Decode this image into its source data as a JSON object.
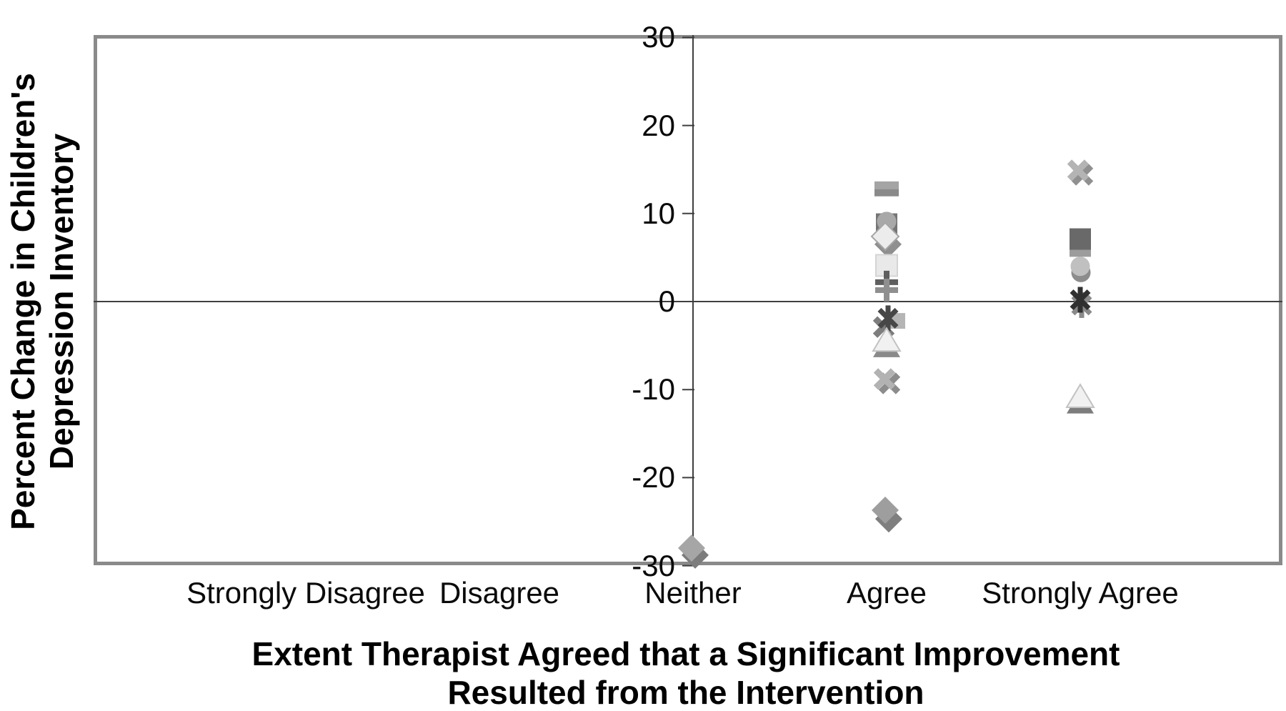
{
  "page": {
    "background": "#ffffff",
    "text_color": "#0a0a0a"
  },
  "chart_data": {
    "type": "scatter",
    "title": "",
    "xlabel": "Extent Therapist Agreed that a Significant Improvement Resulted from the Intervention",
    "xlabel_lines": [
      "Extent Therapist Agreed that a Significant Improvement",
      "Resulted from the Intervention"
    ],
    "ylabel": "Percent Change in Children's Depression Inventory",
    "ylabel_lines": [
      "Percent Change in Children's",
      "Depression Inventory"
    ],
    "categories": [
      "Strongly Disagree",
      "Disagree",
      "Neither",
      "Agree",
      "Strongly Agree"
    ],
    "category_x": [
      1,
      2,
      3,
      4,
      5
    ],
    "x_range": [
      0,
      6
    ],
    "ylim": [
      -30,
      30
    ],
    "yticks": [
      30,
      20,
      10,
      0,
      -10,
      -20,
      -30
    ],
    "grid": false,
    "legend": "none",
    "axis_color": "#3f3f3f",
    "border_color": "#8a8a8a",
    "points": [
      {
        "category": "Neither",
        "x": 3,
        "y": -28.8,
        "marker": "diamond",
        "color": "#7c7c7c",
        "dx": 3
      },
      {
        "category": "Neither",
        "x": 3,
        "y": -28.0,
        "marker": "diamond",
        "color": "#a6a6a6",
        "dx": -2
      },
      {
        "category": "Agree",
        "x": 4,
        "y": 12.4,
        "marker": "dash",
        "color": "#8a8a8a",
        "dx": 0
      },
      {
        "category": "Agree",
        "x": 4,
        "y": 13.2,
        "marker": "dash",
        "color": "#a4a4a4",
        "dx": 0
      },
      {
        "category": "Agree",
        "x": 4,
        "y": 8.8,
        "marker": "square",
        "color": "#757575",
        "dx": 0
      },
      {
        "category": "Agree",
        "x": 4,
        "y": 9.1,
        "marker": "circle",
        "color": "#a8a8a8",
        "dx": 0
      },
      {
        "category": "Agree",
        "x": 4,
        "y": 6.5,
        "marker": "diamond",
        "color": "#8f8f8f",
        "dx": 2
      },
      {
        "category": "Agree",
        "x": 4,
        "y": 7.4,
        "marker": "diamond-light",
        "color": "#ececec",
        "dx": -2
      },
      {
        "category": "Agree",
        "x": 4,
        "y": 4.1,
        "marker": "square-light",
        "color": "#e9e9e9",
        "dx": 0
      },
      {
        "category": "Agree",
        "x": 4,
        "y": 2.2,
        "marker": "plus",
        "color": "#5f5f5f",
        "dx": 0
      },
      {
        "category": "Agree",
        "x": 4,
        "y": 1.3,
        "marker": "plus",
        "color": "#8f8f8f",
        "dx": 0
      },
      {
        "category": "Agree",
        "x": 4,
        "y": -2.9,
        "marker": "x",
        "color": "#7d7d7d",
        "dx": -4
      },
      {
        "category": "Agree",
        "x": 4,
        "y": -2.2,
        "marker": "square-small",
        "color": "#b5b5b5",
        "dx": 15
      },
      {
        "category": "Agree",
        "x": 4,
        "y": -1.9,
        "marker": "asterisk",
        "color": "#474747",
        "dx": 2
      },
      {
        "category": "Agree",
        "x": 4,
        "y": -5.1,
        "marker": "triangle",
        "color": "#8a8a8a",
        "dx": 0
      },
      {
        "category": "Agree",
        "x": 4,
        "y": -4.4,
        "marker": "triangle-light",
        "color": "#f1f1f1",
        "dx": 0
      },
      {
        "category": "Agree",
        "x": 4,
        "y": -9.3,
        "marker": "x",
        "color": "#8c8c8c",
        "dx": 4
      },
      {
        "category": "Agree",
        "x": 4,
        "y": -8.8,
        "marker": "x",
        "color": "#b2b2b2",
        "dx": -3
      },
      {
        "category": "Agree",
        "x": 4,
        "y": -24.7,
        "marker": "diamond",
        "color": "#7f7f7f",
        "dx": 3
      },
      {
        "category": "Agree",
        "x": 4,
        "y": -23.7,
        "marker": "diamond",
        "color": "#9e9e9e",
        "dx": -2
      },
      {
        "category": "Strongly Agree",
        "x": 5,
        "y": 14.4,
        "marker": "x",
        "color": "#909090",
        "dx": 3
      },
      {
        "category": "Strongly Agree",
        "x": 5,
        "y": 14.9,
        "marker": "x",
        "color": "#b4b4b4",
        "dx": -3
      },
      {
        "category": "Strongly Agree",
        "x": 5,
        "y": 6.3,
        "marker": "square",
        "color": "#9c9c9c",
        "dx": 0
      },
      {
        "category": "Strongly Agree",
        "x": 5,
        "y": 7.1,
        "marker": "square",
        "color": "#696969",
        "dx": 0
      },
      {
        "category": "Strongly Agree",
        "x": 5,
        "y": 3.3,
        "marker": "circle",
        "color": "#8c8c8c",
        "dx": 1
      },
      {
        "category": "Strongly Agree",
        "x": 5,
        "y": 4.0,
        "marker": "circle",
        "color": "#c0c0c0",
        "dx": 0
      },
      {
        "category": "Strongly Agree",
        "x": 5,
        "y": -0.4,
        "marker": "asterisk",
        "color": "#8a8a8a",
        "dx": 2
      },
      {
        "category": "Strongly Agree",
        "x": 5,
        "y": 0.2,
        "marker": "asterisk",
        "color": "#303030",
        "dx": 0
      },
      {
        "category": "Strongly Agree",
        "x": 5,
        "y": -11.5,
        "marker": "triangle",
        "color": "#7d7d7d",
        "dx": 0
      },
      {
        "category": "Strongly Agree",
        "x": 5,
        "y": -10.8,
        "marker": "triangle-light",
        "color": "#f1f1f1",
        "dx": 0
      }
    ]
  }
}
